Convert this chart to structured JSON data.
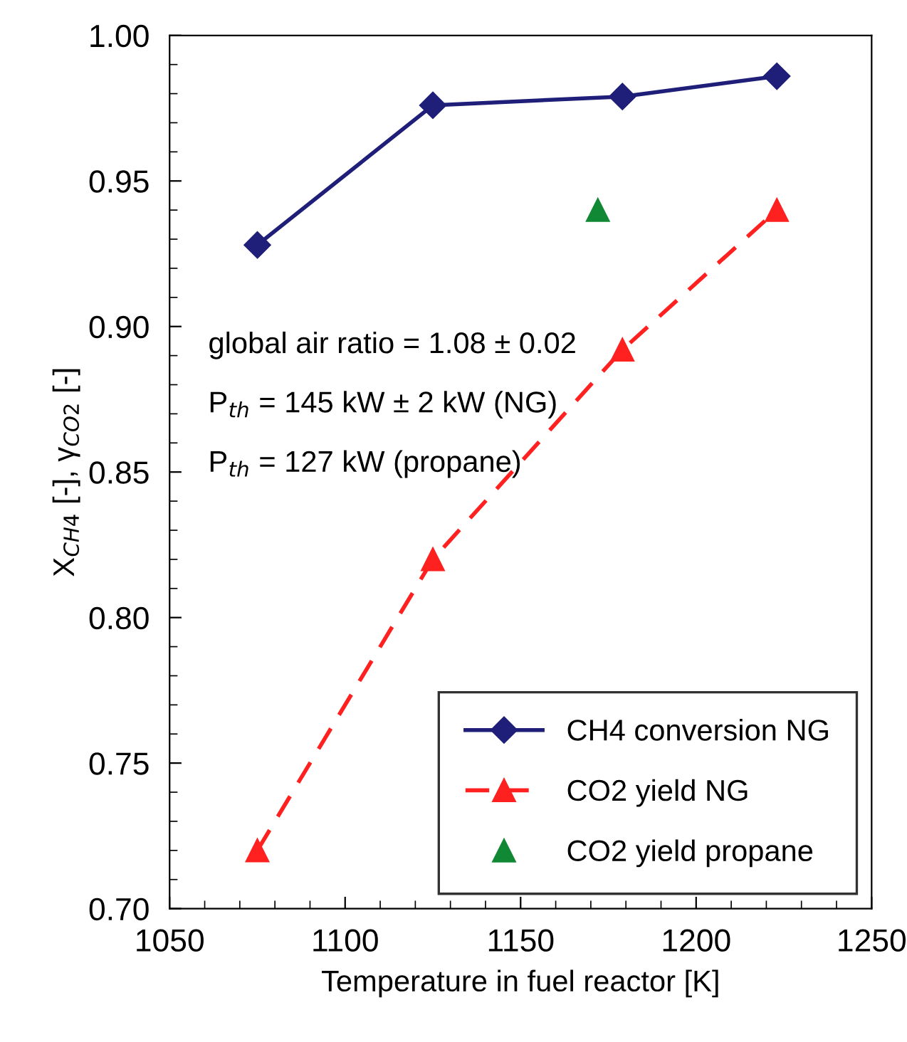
{
  "chart_data": {
    "type": "line",
    "xlabel": "Temperature in fuel reactor [K]",
    "ylabel": "X$_{CH4}$ [-], γ$_{CO2}$ [-]",
    "series": [
      {
        "name": "CH4 conversion NG",
        "color": "#1f1f7a",
        "marker": "diamond",
        "line_style": "solid",
        "x": [
          1075,
          1125,
          1179,
          1223
        ],
        "values": [
          0.928,
          0.976,
          0.979,
          0.986
        ]
      },
      {
        "name": "CO2 yield NG",
        "color": "#ff2020",
        "marker": "triangle",
        "line_style": "dashed",
        "x": [
          1075,
          1125,
          1179,
          1223
        ],
        "values": [
          0.72,
          0.82,
          0.892,
          0.94
        ]
      },
      {
        "name": "CO2 yield propane",
        "type": "scatter",
        "color": "#118833",
        "marker": "triangle",
        "x": [
          1172
        ],
        "values": [
          0.94
        ]
      }
    ],
    "xlim": [
      1050,
      1250
    ],
    "xticks": [
      1050,
      1100,
      1150,
      1200,
      1250
    ],
    "ylim": [
      0.7,
      1.0
    ],
    "yticks": [
      {
        "value": 0.7,
        "label": "0.70"
      },
      {
        "value": 0.75,
        "label": "0.75"
      },
      {
        "value": 0.8,
        "label": "0.80"
      },
      {
        "value": 0.85,
        "label": "0.85"
      },
      {
        "value": 0.9,
        "label": "0.90"
      },
      {
        "value": 0.95,
        "label": "0.95"
      },
      {
        "value": 1.0,
        "label": "1.00"
      }
    ],
    "grid": false,
    "legend": "bottom right",
    "annotations": [
      "global air ratio = 1.08 ± 0.02",
      "P$_{th}$ = 145 kW ± 2 kW (NG)",
      "P$_{th}$ = 127 kW (propane)"
    ]
  }
}
